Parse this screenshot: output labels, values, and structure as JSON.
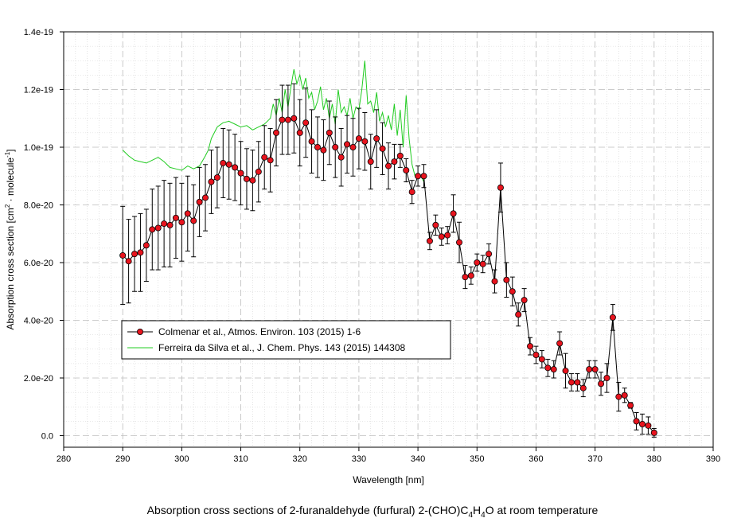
{
  "caption": {
    "before": "Absorption cross sections of 2-furanaldehyde (furfural) 2-(CHO)C",
    "sub1": "4",
    "mid1": "H",
    "sub2": "4",
    "after": "O at room temperature"
  },
  "chart_data": {
    "type": "line",
    "xlabel": "Wavelength [nm]",
    "ylabel_parts": {
      "before": "Absorption cross section [cm",
      "sup1": "2",
      "mid": " · molecule",
      "sup2": "-1",
      "after": "]"
    },
    "xlim": [
      280,
      390
    ],
    "ylim": [
      -4e-21,
      1.4e-19
    ],
    "x_ticks": [
      280,
      290,
      300,
      310,
      320,
      330,
      340,
      350,
      360,
      370,
      380,
      390
    ],
    "y_ticks": [
      {
        "value": 0,
        "label": "0.0"
      },
      {
        "value": 2e-20,
        "label": "2.0e-20"
      },
      {
        "value": 4e-20,
        "label": "4.0e-20"
      },
      {
        "value": 6e-20,
        "label": "6.0e-20"
      },
      {
        "value": 8e-20,
        "label": "8.0e-20"
      },
      {
        "value": 1e-19,
        "label": "1.0e-19"
      },
      {
        "value": 1.2e-19,
        "label": "1.2e-19"
      },
      {
        "value": 1.4e-19,
        "label": "1.4e-19"
      }
    ],
    "grid": true,
    "legend_position": "lower-left",
    "colors": {
      "marker_fill": "#e8141e",
      "marker_edge": "#000000",
      "line": "#000000",
      "green": "#22cc22"
    },
    "series": [
      {
        "name": "Colmenar et al., Atmos. Environ. 103 (2015) 1-6",
        "style": "line-markers-errorbars",
        "x": [
          290,
          291,
          292,
          293,
          294,
          295,
          296,
          297,
          298,
          299,
          300,
          301,
          302,
          303,
          304,
          305,
          306,
          307,
          308,
          309,
          310,
          311,
          312,
          313,
          314,
          315,
          316,
          317,
          318,
          319,
          320,
          321,
          322,
          323,
          324,
          325,
          326,
          327,
          328,
          329,
          330,
          331,
          332,
          333,
          334,
          335,
          336,
          337,
          338,
          339,
          340,
          341,
          342,
          343,
          344,
          345,
          346,
          347,
          348,
          349,
          350,
          351,
          352,
          353,
          354,
          355,
          356,
          357,
          358,
          359,
          360,
          361,
          362,
          363,
          364,
          365,
          366,
          367,
          368,
          369,
          370,
          371,
          372,
          373,
          374,
          375,
          376,
          377,
          378,
          379,
          380
        ],
        "y": [
          6.25,
          6.05,
          6.3,
          6.35,
          6.6,
          7.15,
          7.2,
          7.35,
          7.3,
          7.55,
          7.4,
          7.7,
          7.45,
          8.1,
          8.25,
          8.8,
          8.95,
          9.45,
          9.4,
          9.3,
          9.1,
          8.9,
          8.85,
          9.15,
          9.65,
          9.55,
          10.5,
          10.95,
          10.95,
          11.0,
          10.5,
          10.85,
          10.2,
          10.0,
          9.9,
          10.5,
          10.0,
          9.65,
          10.1,
          10.0,
          10.3,
          10.2,
          9.5,
          10.3,
          9.95,
          9.35,
          9.5,
          9.7,
          9.2,
          8.45,
          9.0,
          9.0,
          6.75,
          7.3,
          6.9,
          6.95,
          7.7,
          6.7,
          5.5,
          5.55,
          6.0,
          5.95,
          6.3,
          5.35,
          8.6,
          5.4,
          5.0,
          4.2,
          4.7,
          3.1,
          2.8,
          2.65,
          2.35,
          2.3,
          3.2,
          2.25,
          1.85,
          1.85,
          1.65,
          2.3,
          2.3,
          1.8,
          2.0,
          4.1,
          1.35,
          1.4,
          1.05,
          0.5,
          0.4,
          0.35,
          0.1
        ],
        "err": [
          1.7,
          1.45,
          1.3,
          1.35,
          1.25,
          1.4,
          1.45,
          1.5,
          1.45,
          1.4,
          1.35,
          1.3,
          1.25,
          1.2,
          1.15,
          1.1,
          1.05,
          1.2,
          1.2,
          1.15,
          1.1,
          1.05,
          1.05,
          1.05,
          1.1,
          1.1,
          1.15,
          1.2,
          1.2,
          1.2,
          1.15,
          1.2,
          1.1,
          1.05,
          1.05,
          1.1,
          1.05,
          1.0,
          1.0,
          1.0,
          1.05,
          1.0,
          0.95,
          1.0,
          0.9,
          0.8,
          0.6,
          0.4,
          0.4,
          0.4,
          0.35,
          0.4,
          0.3,
          0.35,
          0.3,
          0.3,
          0.65,
          0.7,
          0.4,
          0.3,
          0.3,
          0.3,
          0.35,
          0.4,
          0.85,
          0.6,
          0.5,
          0.4,
          0.4,
          0.3,
          0.3,
          0.3,
          0.3,
          0.3,
          0.4,
          0.6,
          0.3,
          0.3,
          0.3,
          0.3,
          0.3,
          0.4,
          0.5,
          0.45,
          0.5,
          0.25,
          0.1,
          0.3,
          0.35,
          0.3,
          0.15
        ],
        "unit_scale": 1e-20
      },
      {
        "name": "Ferreira da Silva et al., J. Chem. Phys. 143 (2015) 144308",
        "style": "line",
        "x": [
          290,
          291,
          292,
          293,
          294,
          295,
          296,
          297,
          298,
          299,
          300,
          301,
          302,
          303,
          304,
          304.5,
          305,
          306,
          307,
          308,
          309,
          310,
          311,
          312,
          313,
          314,
          315,
          315.5,
          316,
          316.5,
          317,
          317.5,
          318,
          318.5,
          319,
          319.5,
          320,
          320.5,
          321,
          321.5,
          322,
          322.5,
          323,
          323.5,
          324,
          324.5,
          325,
          325.5,
          326,
          326.5,
          327,
          327.5,
          328,
          328.5,
          329,
          329.5,
          330,
          330.5,
          331,
          331.5,
          332,
          332.5,
          333,
          333.5,
          334,
          334.5,
          335,
          335.5,
          336,
          336.5,
          337,
          337.5,
          338,
          338.5,
          339,
          339.5,
          340,
          340.5,
          341
        ],
        "y": [
          9.9,
          9.7,
          9.55,
          9.5,
          9.45,
          9.55,
          9.65,
          9.5,
          9.3,
          9.25,
          9.2,
          9.35,
          9.25,
          9.35,
          9.7,
          9.9,
          10.3,
          10.7,
          10.85,
          10.9,
          10.8,
          10.7,
          10.75,
          10.6,
          10.7,
          10.8,
          11.0,
          11.5,
          11.1,
          11.7,
          11.2,
          12.0,
          11.4,
          12.1,
          12.7,
          12.2,
          12.5,
          12.0,
          12.4,
          11.7,
          11.9,
          11.3,
          11.6,
          12.1,
          11.3,
          11.7,
          11.0,
          11.5,
          10.8,
          12.0,
          11.2,
          11.4,
          11.1,
          11.7,
          11.0,
          11.4,
          11.3,
          12.0,
          13.0,
          11.5,
          11.6,
          11.2,
          11.9,
          10.9,
          11.2,
          10.7,
          11.1,
          10.6,
          11.5,
          10.4,
          11.3,
          10.0,
          11.8,
          10.3,
          9.4,
          9.0,
          8.9,
          9.0,
          8.8
        ],
        "unit_scale": 1e-20
      }
    ]
  }
}
